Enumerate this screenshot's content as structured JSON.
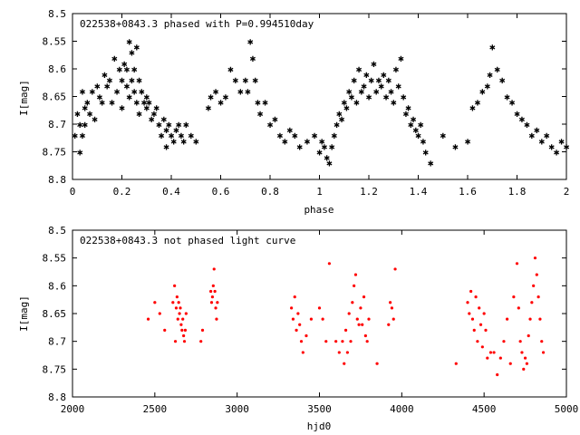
{
  "chart_data": [
    {
      "type": "scatter",
      "title": "022538+0843.3 phased with P=0.994510day",
      "xlabel": "phase",
      "ylabel": "I[mag]",
      "xlim": [
        0,
        2
      ],
      "ylim": [
        8.5,
        8.8
      ],
      "y_inverted": true,
      "xticks": [
        "0",
        "0.2",
        "0.4",
        "0.6",
        "0.8",
        "1",
        "1.2",
        "1.4",
        "1.6",
        "1.8",
        "2"
      ],
      "yticks": [
        "8.5",
        "8.55",
        "8.6",
        "8.65",
        "8.7",
        "8.75",
        "8.8"
      ],
      "grid": false,
      "marker": "star",
      "color": "#ff0000",
      "series": [
        {
          "x": [
            0.01,
            0.02,
            0.03,
            0.03,
            0.04,
            0.04,
            0.05,
            0.05,
            0.06,
            0.07,
            0.08,
            0.09,
            0.1,
            0.11,
            0.12,
            0.13,
            0.14,
            0.15,
            0.16,
            0.17,
            0.18,
            0.19,
            0.2,
            0.2,
            0.21,
            0.22,
            0.22,
            0.23,
            0.23,
            0.24,
            0.24,
            0.25,
            0.25,
            0.26,
            0.26,
            0.27,
            0.27,
            0.28,
            0.29,
            0.3,
            0.3,
            0.31,
            0.32,
            0.33,
            0.34,
            0.35,
            0.36,
            0.37,
            0.38,
            0.38,
            0.39,
            0.4,
            0.41,
            0.42,
            0.43,
            0.44,
            0.45,
            0.46,
            0.48,
            0.5,
            0.55,
            0.56,
            0.58,
            0.6,
            0.62,
            0.64,
            0.66,
            0.68,
            0.7,
            0.71,
            0.72,
            0.73,
            0.74,
            0.75,
            0.76,
            0.78,
            0.8,
            0.82,
            0.84,
            0.86,
            0.88,
            0.9,
            0.92,
            0.95,
            0.98,
            1.0,
            1.01,
            1.02,
            1.03,
            1.04,
            1.05,
            1.06,
            1.07,
            1.08,
            1.09,
            1.1,
            1.11,
            1.12,
            1.13,
            1.14,
            1.15,
            1.16,
            1.17,
            1.18,
            1.19,
            1.2,
            1.21,
            1.22,
            1.23,
            1.24,
            1.25,
            1.26,
            1.27,
            1.28,
            1.29,
            1.3,
            1.31,
            1.32,
            1.33,
            1.34,
            1.35,
            1.36,
            1.37,
            1.38,
            1.39,
            1.4,
            1.41,
            1.42,
            1.43,
            1.45,
            1.5,
            1.55,
            1.6,
            1.62,
            1.64,
            1.66,
            1.68,
            1.69,
            1.7,
            1.72,
            1.74,
            1.76,
            1.78,
            1.8,
            1.82,
            1.84,
            1.86,
            1.88,
            1.9,
            1.92,
            1.94,
            1.96,
            1.98,
            2.0
          ],
          "y": [
            8.72,
            8.68,
            8.7,
            8.75,
            8.64,
            8.72,
            8.67,
            8.7,
            8.66,
            8.68,
            8.64,
            8.69,
            8.63,
            8.65,
            8.66,
            8.61,
            8.63,
            8.62,
            8.66,
            8.58,
            8.64,
            8.6,
            8.62,
            8.67,
            8.59,
            8.63,
            8.6,
            8.55,
            8.65,
            8.62,
            8.57,
            8.64,
            8.6,
            8.56,
            8.66,
            8.62,
            8.68,
            8.64,
            8.66,
            8.65,
            8.67,
            8.66,
            8.69,
            8.68,
            8.67,
            8.7,
            8.72,
            8.69,
            8.71,
            8.74,
            8.7,
            8.72,
            8.73,
            8.71,
            8.7,
            8.72,
            8.73,
            8.7,
            8.72,
            8.73,
            8.67,
            8.65,
            8.64,
            8.66,
            8.65,
            8.6,
            8.62,
            8.64,
            8.62,
            8.64,
            8.55,
            8.58,
            8.62,
            8.66,
            8.68,
            8.66,
            8.7,
            8.69,
            8.72,
            8.73,
            8.71,
            8.72,
            8.74,
            8.73,
            8.72,
            8.75,
            8.73,
            8.74,
            8.76,
            8.77,
            8.74,
            8.72,
            8.7,
            8.68,
            8.69,
            8.66,
            8.67,
            8.64,
            8.65,
            8.62,
            8.66,
            8.6,
            8.64,
            8.63,
            8.61,
            8.65,
            8.62,
            8.59,
            8.64,
            8.62,
            8.63,
            8.61,
            8.65,
            8.62,
            8.64,
            8.66,
            8.6,
            8.63,
            8.58,
            8.65,
            8.68,
            8.67,
            8.7,
            8.69,
            8.71,
            8.72,
            8.7,
            8.73,
            8.75,
            8.77,
            8.72,
            8.74,
            8.73,
            8.67,
            8.66,
            8.64,
            8.63,
            8.61,
            8.56,
            8.6,
            8.62,
            8.65,
            8.66,
            8.68,
            8.69,
            8.7,
            8.72,
            8.71,
            8.73,
            8.72,
            8.74,
            8.75,
            8.73,
            8.74
          ]
        }
      ]
    },
    {
      "type": "scatter",
      "title": "022538+0843.3 not phased light curve",
      "xlabel": "hjd0",
      "ylabel": "I[mag]",
      "xlim": [
        2000,
        5000
      ],
      "ylim": [
        8.5,
        8.8
      ],
      "y_inverted": true,
      "xticks": [
        "2000",
        "2500",
        "3000",
        "3500",
        "4000",
        "4500",
        "5000"
      ],
      "yticks": [
        "8.5",
        "8.55",
        "8.6",
        "8.65",
        "8.7",
        "8.75",
        "8.8"
      ],
      "grid": false,
      "marker": "dot",
      "color": "#ff0000",
      "series": [
        {
          "x": [
            2460,
            2500,
            2530,
            2560,
            2610,
            2620,
            2625,
            2630,
            2635,
            2640,
            2645,
            2650,
            2655,
            2660,
            2665,
            2670,
            2675,
            2680,
            2685,
            2690,
            2780,
            2790,
            2840,
            2845,
            2850,
            2855,
            2860,
            2865,
            2870,
            2875,
            2880,
            3330,
            3340,
            3350,
            3360,
            3370,
            3380,
            3390,
            3400,
            3420,
            3450,
            3500,
            3520,
            3540,
            3560,
            3600,
            3620,
            3640,
            3650,
            3660,
            3670,
            3680,
            3690,
            3700,
            3710,
            3720,
            3730,
            3740,
            3750,
            3760,
            3770,
            3780,
            3790,
            3800,
            3850,
            3920,
            3930,
            3940,
            3950,
            3960,
            4330,
            4400,
            4410,
            4420,
            4430,
            4440,
            4450,
            4460,
            4470,
            4480,
            4490,
            4500,
            4510,
            4520,
            4540,
            4560,
            4580,
            4600,
            4620,
            4640,
            4660,
            4680,
            4700,
            4710,
            4720,
            4730,
            4740,
            4750,
            4760,
            4770,
            4780,
            4790,
            4800,
            4810,
            4820,
            4830,
            4840,
            4850,
            4860
          ],
          "y": [
            8.66,
            8.63,
            8.65,
            8.68,
            8.63,
            8.6,
            8.7,
            8.64,
            8.62,
            8.66,
            8.63,
            8.65,
            8.64,
            8.67,
            8.68,
            8.66,
            8.69,
            8.7,
            8.68,
            8.65,
            8.7,
            8.68,
            8.61,
            8.63,
            8.62,
            8.6,
            8.57,
            8.61,
            8.64,
            8.66,
            8.63,
            8.64,
            8.66,
            8.62,
            8.68,
            8.65,
            8.67,
            8.7,
            8.72,
            8.69,
            8.66,
            8.64,
            8.66,
            8.7,
            8.56,
            8.7,
            8.72,
            8.7,
            8.74,
            8.68,
            8.72,
            8.65,
            8.7,
            8.63,
            8.6,
            8.58,
            8.66,
            8.67,
            8.64,
            8.67,
            8.62,
            8.69,
            8.7,
            8.66,
            8.74,
            8.67,
            8.63,
            8.64,
            8.66,
            8.57,
            8.74,
            8.63,
            8.65,
            8.61,
            8.66,
            8.68,
            8.62,
            8.7,
            8.64,
            8.67,
            8.71,
            8.65,
            8.68,
            8.73,
            8.72,
            8.72,
            8.76,
            8.73,
            8.7,
            8.66,
            8.74,
            8.62,
            8.56,
            8.64,
            8.7,
            8.72,
            8.75,
            8.73,
            8.74,
            8.69,
            8.66,
            8.63,
            8.6,
            8.55,
            8.58,
            8.62,
            8.66,
            8.7,
            8.72
          ]
        }
      ]
    }
  ]
}
